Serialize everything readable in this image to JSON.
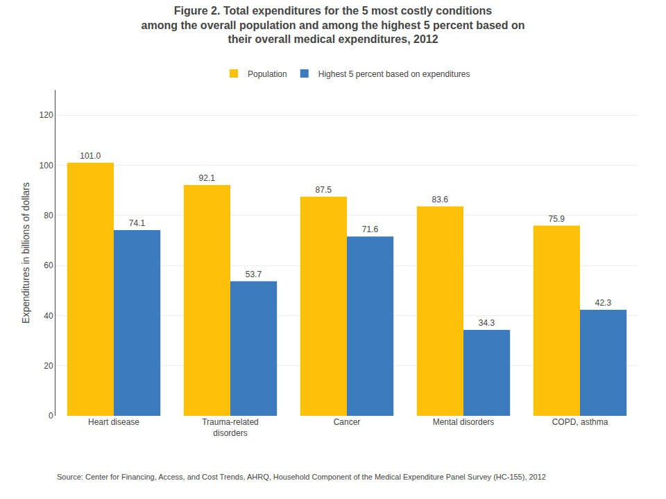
{
  "chart_data": {
    "type": "bar",
    "title": "Figure 2. Total expenditures for the 5 most costly conditions\namong the overall population and among the highest 5 percent based on\ntheir overall medical expenditures, 2012",
    "categories": [
      "Heart disease",
      "Trauma-related\ndisorders",
      "Cancer",
      "Mental disorders",
      "COPD, asthma"
    ],
    "series": [
      {
        "name": "Population",
        "color": "#FFC107",
        "values": [
          101.0,
          92.1,
          87.5,
          83.6,
          75.9
        ],
        "value_labels": [
          "101.0",
          "92.1",
          "87.5",
          "83.6",
          "75.9"
        ]
      },
      {
        "name": "Highest 5 percent based on expenditures",
        "color": "#3B7BBE",
        "values": [
          74.1,
          53.7,
          71.6,
          34.3,
          42.3
        ],
        "value_labels": [
          "74.1",
          "53.7",
          "71.6",
          "34.3",
          "42.3"
        ]
      }
    ],
    "ylabel": "Expenditures in billions of dollars",
    "ylim": [
      0,
      130
    ],
    "yticks": [
      0,
      20,
      40,
      60,
      80,
      100,
      120
    ],
    "grid": true,
    "legend": "top",
    "data_labels": true,
    "annotations": [
      "Source: Center for Financing, Access, and Cost Trends, AHRQ, Household Component of the Medical Expenditure Panel Survey (HC-155), 2012"
    ]
  }
}
